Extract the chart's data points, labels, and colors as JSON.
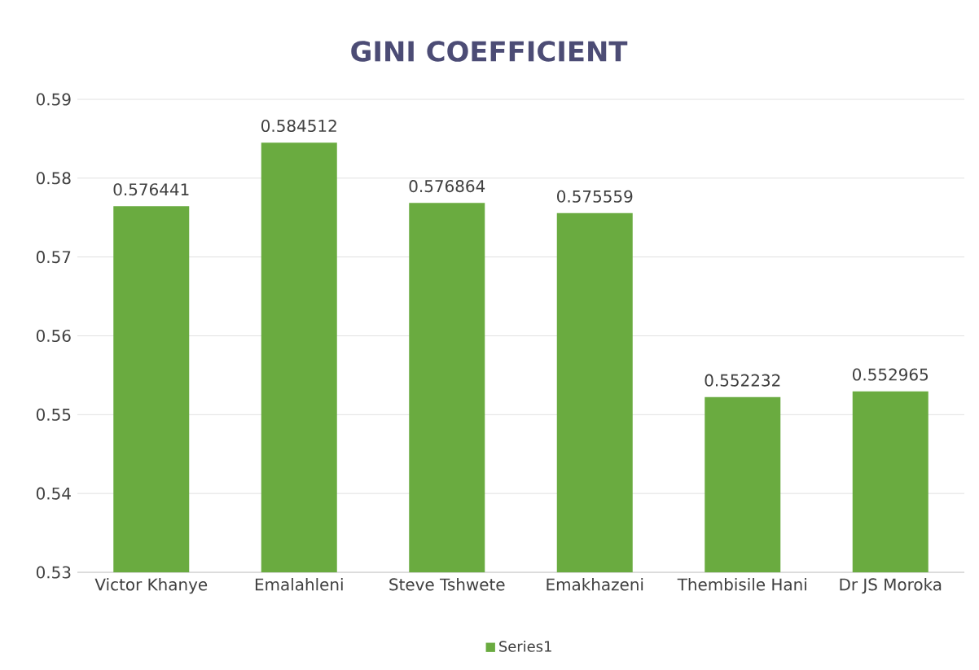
{
  "chart_data": {
    "type": "bar",
    "title": "GINI COEFFICIENT",
    "categories": [
      "Victor Khanye",
      "Emalahleni",
      "Steve Tshwete",
      "Emakhazeni",
      "Thembisile Hani",
      "Dr JS Moroka"
    ],
    "series": [
      {
        "name": "Series1",
        "color": "#6aab40",
        "values": [
          0.576441,
          0.584512,
          0.576864,
          0.575559,
          0.552232,
          0.552965
        ]
      }
    ],
    "ylim": [
      0.53,
      0.59
    ],
    "yticks": [
      0.53,
      0.54,
      0.55,
      0.56,
      0.57,
      0.58,
      0.59
    ],
    "grid": "y",
    "legend": "bottom",
    "data_labels": true
  }
}
